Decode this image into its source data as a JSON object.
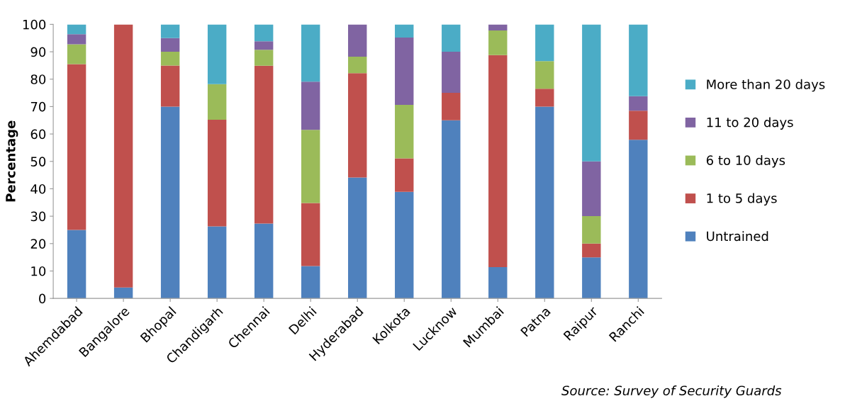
{
  "chart_data": {
    "type": "bar",
    "stacked": true,
    "ylabel": "Percentage",
    "categories": [
      "Ahemdabad",
      "Bangalore",
      "Bhopal",
      "Chandigarh",
      "Chennai",
      "Delhi",
      "Hyderabad",
      "Kolkota",
      "Lucknow",
      "Mumbai",
      "Patna",
      "Raipur",
      "Ranchi"
    ],
    "series": [
      {
        "name": "Untrained",
        "color": "#4f81bd",
        "values": [
          25,
          4,
          70,
          26.3,
          27.3,
          11.8,
          44.1,
          38.9,
          65,
          11.4,
          70,
          15,
          57.9
        ]
      },
      {
        "name": "1 to 5 days",
        "color": "#c0504d",
        "values": [
          60.5,
          96,
          15,
          38.9,
          57.6,
          23,
          38.1,
          12.2,
          10,
          77.4,
          6.5,
          5,
          10.6
        ]
      },
      {
        "name": "6 to 10 days",
        "color": "#9bbb59",
        "values": [
          7.2,
          0,
          5,
          13,
          5.8,
          26.7,
          6,
          19.5,
          0,
          9,
          10.1,
          10,
          0
        ]
      },
      {
        "name": "11 to 20 days",
        "color": "#8064a2",
        "values": [
          3.7,
          0,
          5,
          0,
          3.1,
          17.6,
          11.8,
          24.6,
          15,
          2.2,
          0,
          20,
          5.3
        ]
      },
      {
        "name": "More than 20 days",
        "color": "#4bacc6",
        "values": [
          3.6,
          0,
          5,
          21.8,
          6.2,
          20.9,
          0,
          4.8,
          10,
          0,
          13.4,
          50,
          26.2
        ]
      }
    ],
    "ylim": [
      0,
      100
    ],
    "yticks": [
      0,
      10,
      20,
      30,
      40,
      50,
      60,
      70,
      80,
      90,
      100
    ],
    "grid": false,
    "legend": "right",
    "annotations": [
      "Source: Survey of Security Guards"
    ]
  }
}
